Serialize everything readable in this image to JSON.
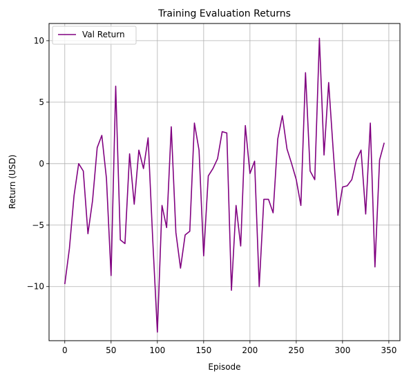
{
  "chart_data": {
    "type": "line",
    "title": "Training Evaluation Returns",
    "xlabel": "Episode",
    "ylabel": "Return (USD)",
    "xlim": [
      -17,
      362
    ],
    "ylim": [
      -14.4,
      11.4
    ],
    "xticks": [
      0,
      50,
      100,
      150,
      200,
      250,
      300,
      350
    ],
    "yticks": [
      -10,
      -5,
      0,
      5,
      10
    ],
    "grid": true,
    "legend_position": "top-left",
    "series": [
      {
        "name": "Val Return",
        "color": "#800080",
        "x": [
          0,
          5,
          10,
          15,
          20,
          25,
          30,
          35,
          40,
          45,
          50,
          55,
          60,
          65,
          70,
          75,
          80,
          85,
          90,
          95,
          100,
          105,
          110,
          115,
          120,
          125,
          130,
          135,
          140,
          145,
          150,
          155,
          160,
          165,
          170,
          175,
          180,
          185,
          190,
          195,
          200,
          205,
          210,
          215,
          220,
          225,
          230,
          235,
          240,
          245,
          250,
          255,
          260,
          265,
          270,
          275,
          280,
          285,
          290,
          295,
          300,
          305,
          310,
          315,
          320,
          325,
          330,
          335,
          340,
          345
        ],
        "y": [
          -9.8,
          -6.9,
          -2.6,
          0.0,
          -0.6,
          -5.7,
          -3.0,
          1.3,
          2.3,
          -1.2,
          -9.1,
          6.3,
          -6.2,
          -6.5,
          0.8,
          -3.3,
          1.1,
          -0.4,
          2.1,
          -6.2,
          -13.7,
          -3.4,
          -5.2,
          3.0,
          -5.6,
          -8.5,
          -5.8,
          -5.5,
          3.3,
          1.1,
          -7.5,
          -1.0,
          -0.4,
          0.4,
          2.6,
          2.5,
          -10.3,
          -3.4,
          -6.7,
          3.1,
          -0.8,
          0.2,
          -10.0,
          -2.9,
          -2.9,
          -4.0,
          2.0,
          3.9,
          1.2,
          0.0,
          -1.3,
          -3.4,
          7.4,
          -0.6,
          -1.3,
          10.2,
          0.7,
          6.6,
          1.0,
          -4.2,
          -1.9,
          -1.8,
          -1.3,
          0.3,
          1.1,
          -4.1,
          3.3,
          -8.4,
          0.3,
          1.7
        ]
      }
    ]
  }
}
